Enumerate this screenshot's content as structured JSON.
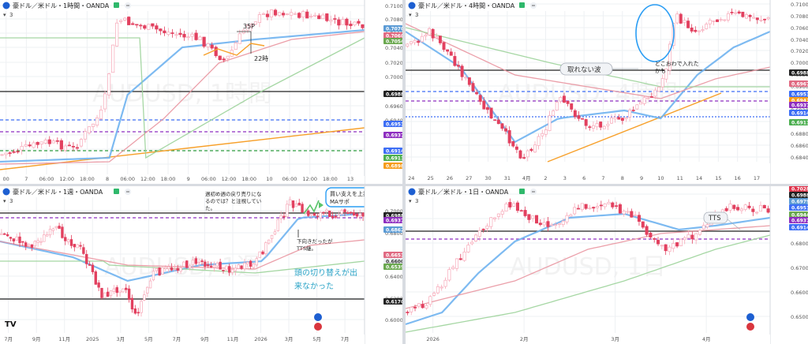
{
  "charts": [
    {
      "id": "p1",
      "header": {
        "title": "豪ドル／米ドル・1時間・OANDA",
        "interval": "3"
      },
      "watermark": "AUDUSD, 1時間",
      "price_labels": [
        "0.71000",
        "0.70800",
        "0.70600",
        "0.70400",
        "0.70200",
        "0.70000",
        "0.69800",
        "0.69600",
        "0.69400",
        "0.69200",
        "0.69000",
        "0.68800"
      ],
      "badges": [
        {
          "text": "0.70708",
          "color": "#5b9bd5"
        },
        {
          "text": "0.70609",
          "color": "#e06a82"
        },
        {
          "text": "0.70547",
          "color": "#6aa84f"
        },
        {
          "text": "0.69884",
          "color": "#222222"
        },
        {
          "text": "0.69515",
          "color": "#3d6ef5"
        },
        {
          "text": "0.69371",
          "color": "#8e2ec0"
        },
        {
          "text": "0.69140",
          "color": "#3d6ef5"
        },
        {
          "text": "0.69117",
          "color": "#4caf50"
        },
        {
          "text": "0.68983",
          "color": "#f59c1a"
        }
      ],
      "time_labels": [
        "00",
        "7",
        "06:00",
        "12:00",
        "18:00",
        "8",
        "06:00",
        "12:00",
        "18:00",
        "9",
        "06:00",
        "12:00",
        "18:00",
        "10",
        "06:00",
        "12:00",
        "18:00",
        "13"
      ],
      "annotations": [
        {
          "name": "annotation-35p",
          "text": "35P"
        },
        {
          "name": "annotation-22ji",
          "text": "22時"
        }
      ]
    },
    {
      "id": "p2",
      "header": {
        "title": "豪ドル／米ドル・4時間・OANDA",
        "interval": "3"
      },
      "watermark": "AUDUSD, 4時間",
      "price_labels": [
        "0.71000",
        "0.70800",
        "0.70600",
        "0.70400",
        "0.70200",
        "0.70000",
        "0.69800",
        "0.69600",
        "0.69400",
        "0.69200",
        "0.69000",
        "0.68800",
        "0.68600",
        "0.68400"
      ],
      "badges": [
        {
          "text": "0.69884",
          "color": "#222222"
        },
        {
          "text": "0.69675",
          "color": "#e06a82"
        },
        {
          "text": "0.69515",
          "color": "#3d6ef5"
        },
        {
          "text": "0.69423",
          "color": "#f59c1a"
        },
        {
          "text": "0.69371",
          "color": "#8e2ec0"
        },
        {
          "text": "0.69140",
          "color": "#3d6ef5"
        },
        {
          "text": "0.69117",
          "color": "#4caf50"
        }
      ],
      "time_labels": [
        "24",
        "25",
        "26",
        "27",
        "30",
        "31",
        "4月",
        "2",
        "3",
        "6",
        "7",
        "8",
        "9",
        "10",
        "11",
        "14",
        "15",
        "16",
        "17"
      ],
      "annotations": [
        {
          "name": "annotation-torenai-nami",
          "text": "取れない波"
        },
        {
          "name": "annotation-dokoowa-line1",
          "text": "どこおわで入れた"
        },
        {
          "name": "annotation-dokoowa-line2",
          "text": "かも"
        }
      ]
    },
    {
      "id": "p3",
      "header": {
        "title": "豪ドル／米ドル・1週・OANDA",
        "interval": "3"
      },
      "watermark": "AUDUSD, 1週",
      "price_labels": [
        "0.70000",
        "0.68000",
        "0.66000",
        "0.64000",
        "0.62000",
        "0.60000"
      ],
      "badges": [
        {
          "text": "0.69884",
          "color": "#222222"
        },
        {
          "text": "0.69371",
          "color": "#8e2ec0"
        },
        {
          "text": "0.68623",
          "color": "#5b9bd5"
        },
        {
          "text": "0.66517",
          "color": "#e06a82"
        },
        {
          "text": "0.66000",
          "color": "#eef0f4"
        },
        {
          "text": "0.65391",
          "color": "#6aa84f"
        },
        {
          "text": "0.61702",
          "color": "#222222"
        }
      ],
      "time_labels": [
        "7月",
        "9月",
        "11月",
        "2025",
        "3月",
        "5月",
        "7月",
        "9月",
        "11月",
        "2026",
        "3月",
        "5月",
        "7月"
      ],
      "annotations": [
        {
          "name": "annotation-week-note-line1",
          "text": "週初め週の戻り売りにな"
        },
        {
          "name": "annotation-week-note-line2",
          "text": "るのでは？と注視してい"
        },
        {
          "name": "annotation-week-note-line3",
          "text": "た。"
        },
        {
          "name": "annotation-kaisasae-line1",
          "text": "買い支えを上抜けていった"
        },
        {
          "name": "annotation-kaisasae-line2",
          "text": "MAサポ"
        },
        {
          "name": "annotation-shitamuki-line1",
          "text": "下向きだったが"
        },
        {
          "name": "annotation-shitamuki-line2",
          "text": "TTS継。"
        },
        {
          "name": "annotation-atama-line1",
          "text": "頭の切り替えが出"
        },
        {
          "name": "annotation-atama-line2",
          "text": "来なかった"
        }
      ]
    },
    {
      "id": "p4",
      "header": {
        "title": "豪ドル／米ドル・1日・OANDA",
        "interval": "3"
      },
      "watermark": "AUDUSD, 1日",
      "price_labels": [
        "0.70000",
        "0.69000",
        "0.68000",
        "0.67000",
        "0.66000",
        "0.65000"
      ],
      "badges": [
        {
          "text": "0.70284",
          "color": "#e0334b"
        },
        {
          "text": "0.69884",
          "color": "#222222"
        },
        {
          "text": "0.69799",
          "color": "#5b9bd5"
        },
        {
          "text": "0.69515",
          "color": "#3d6ef5"
        },
        {
          "text": "0.69446",
          "color": "#6aa84f"
        },
        {
          "text": "0.69371",
          "color": "#8e2ec0"
        },
        {
          "text": "0.69140",
          "color": "#3d6ef5"
        }
      ],
      "time_labels": [
        "2026",
        "2月",
        "3月",
        "4月"
      ],
      "annotations": [
        {
          "name": "annotation-tts",
          "text": "TTS"
        }
      ]
    }
  ],
  "colors": {
    "bull": "#26a69a",
    "bear": "#ef5350",
    "candle_up": "#f7a8b8",
    "candle_down": "#e2405f",
    "ma_fast": "#6fb3ef",
    "ma_mid": "#e995a0",
    "ma_slow": "#9cd39a",
    "trend": "#f7a02a",
    "grid": "#eef0f3",
    "accent_blue": "#2a9df4",
    "note_teal": "#2aa3c6"
  }
}
